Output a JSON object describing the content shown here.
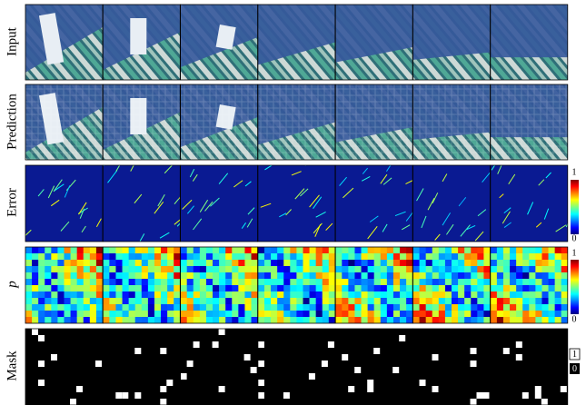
{
  "rows": [
    {
      "label": "Input"
    },
    {
      "label": "Prediction"
    },
    {
      "label": "Error"
    },
    {
      "label": "p"
    },
    {
      "label": "Mask"
    }
  ],
  "error_colorbar": {
    "max": 1,
    "min": 0
  },
  "p_colorbar": {
    "max": 1,
    "min": 0
  },
  "mask_legend": {
    "one": 1,
    "zero": 0
  }
}
